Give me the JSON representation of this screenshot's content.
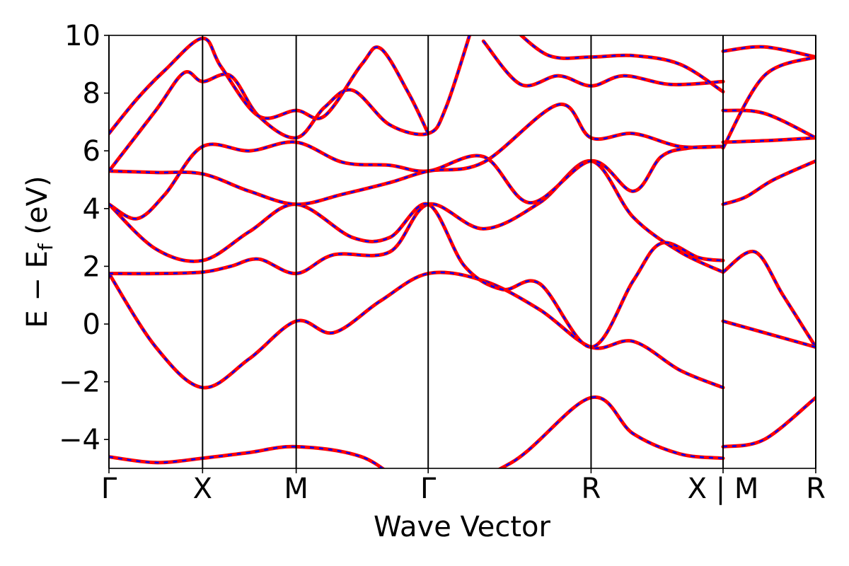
{
  "chart_data": {
    "type": "line",
    "title": "",
    "xlabel": "Wave Vector",
    "ylabel_main": "E − E",
    "ylabel_sub": "f",
    "ylabel_unit": "(eV)",
    "ylim": [
      -5,
      10
    ],
    "yticks": [
      -4,
      -2,
      0,
      2,
      4,
      6,
      8,
      10
    ],
    "ytick_labels": [
      "−4",
      "−2",
      "0",
      "2",
      "4",
      "6",
      "8",
      "10"
    ],
    "grid": false,
    "xlim": [
      0,
      7.55
    ],
    "kpoints": [
      {
        "x": 0.0,
        "label": "Γ"
      },
      {
        "x": 1.0,
        "label": "X"
      },
      {
        "x": 2.0,
        "label": "M"
      },
      {
        "x": 3.41,
        "label": "Γ"
      },
      {
        "x": 5.15,
        "label": "R"
      },
      {
        "x": 6.56,
        "label": "X | M"
      },
      {
        "x": 7.55,
        "label": "R"
      }
    ],
    "series": [
      {
        "color": "#ff0000",
        "style": "solid",
        "bands": [
          [
            [
              0,
              -4.6
            ],
            [
              0.5,
              -4.8
            ],
            [
              1.0,
              -4.65
            ],
            [
              1.5,
              -4.45
            ],
            [
              2.0,
              -4.25
            ],
            [
              2.7,
              -4.6
            ],
            [
              3.41,
              -5.8
            ],
            [
              4.3,
              -4.8
            ],
            [
              5.15,
              -2.55
            ],
            [
              5.6,
              -3.8
            ],
            [
              6.1,
              -4.5
            ],
            [
              6.56,
              -4.65
            ]
          ],
          [
            [
              0,
              1.75
            ],
            [
              0.5,
              -0.8
            ],
            [
              1.0,
              -2.2
            ],
            [
              1.5,
              -1.2
            ],
            [
              2.0,
              0.1
            ],
            [
              2.4,
              -0.3
            ],
            [
              2.9,
              0.8
            ],
            [
              3.41,
              1.75
            ],
            [
              4.0,
              1.5
            ],
            [
              4.6,
              0.5
            ],
            [
              5.15,
              -0.8
            ],
            [
              5.6,
              -0.6
            ],
            [
              6.1,
              -1.6
            ],
            [
              6.56,
              -2.2
            ]
          ],
          [
            [
              0,
              1.75
            ],
            [
              0.5,
              1.75
            ],
            [
              1.0,
              1.8
            ],
            [
              1.3,
              2.0
            ],
            [
              1.6,
              2.25
            ],
            [
              2.0,
              1.75
            ],
            [
              2.4,
              2.4
            ],
            [
              3.0,
              2.5
            ],
            [
              3.41,
              4.15
            ],
            [
              4.0,
              3.3
            ],
            [
              4.6,
              4.2
            ],
            [
              5.15,
              5.65
            ],
            [
              5.6,
              3.7
            ],
            [
              6.1,
              2.5
            ],
            [
              6.56,
              1.8
            ]
          ],
          [
            [
              0,
              4.15
            ],
            [
              0.5,
              2.6
            ],
            [
              1.0,
              2.2
            ],
            [
              1.5,
              3.2
            ],
            [
              2.0,
              4.15
            ],
            [
              2.6,
              3.0
            ],
            [
              3.0,
              3.0
            ],
            [
              3.41,
              4.15
            ],
            [
              3.8,
              2.0
            ],
            [
              4.2,
              1.2
            ],
            [
              4.6,
              1.4
            ],
            [
              5.15,
              -0.8
            ],
            [
              5.6,
              1.5
            ],
            [
              5.9,
              2.8
            ],
            [
              6.3,
              2.3
            ],
            [
              6.56,
              2.2
            ]
          ],
          [
            [
              0,
              4.15
            ],
            [
              0.3,
              3.65
            ],
            [
              0.6,
              4.5
            ],
            [
              1.0,
              6.15
            ],
            [
              1.5,
              6.0
            ],
            [
              2.0,
              6.3
            ],
            [
              2.5,
              5.6
            ],
            [
              3.0,
              5.5
            ],
            [
              3.41,
              5.3
            ],
            [
              4.0,
              5.8
            ],
            [
              4.5,
              4.2
            ],
            [
              5.15,
              5.65
            ],
            [
              5.6,
              4.6
            ],
            [
              5.9,
              5.8
            ],
            [
              6.2,
              6.1
            ],
            [
              6.56,
              6.15
            ]
          ],
          [
            [
              0,
              5.3
            ],
            [
              0.5,
              5.25
            ],
            [
              1.0,
              5.2
            ],
            [
              1.5,
              4.6
            ],
            [
              2.0,
              4.15
            ],
            [
              2.5,
              4.5
            ],
            [
              3.0,
              4.9
            ],
            [
              3.41,
              5.3
            ],
            [
              4.0,
              5.6
            ],
            [
              4.8,
              7.6
            ],
            [
              5.15,
              6.45
            ],
            [
              5.6,
              6.6
            ],
            [
              6.1,
              6.15
            ],
            [
              6.56,
              6.15
            ]
          ],
          [
            [
              0,
              5.3
            ],
            [
              0.5,
              7.4
            ],
            [
              0.8,
              8.7
            ],
            [
              1.0,
              8.4
            ],
            [
              1.3,
              8.6
            ],
            [
              1.6,
              7.2
            ],
            [
              2.0,
              6.45
            ],
            [
              2.3,
              7.5
            ],
            [
              2.6,
              8.1
            ],
            [
              3.0,
              6.9
            ],
            [
              3.41,
              6.6
            ],
            [
              3.6,
              7.5
            ],
            [
              3.9,
              10.5
            ]
          ],
          [
            [
              0,
              6.6
            ],
            [
              0.3,
              7.8
            ],
            [
              0.6,
              8.8
            ],
            [
              1.0,
              9.9
            ],
            [
              1.2,
              8.9
            ],
            [
              1.6,
              7.2
            ],
            [
              2.0,
              7.4
            ],
            [
              2.3,
              7.2
            ],
            [
              2.7,
              9.0
            ],
            [
              2.9,
              9.55
            ],
            [
              3.2,
              8.0
            ],
            [
              3.41,
              6.6
            ]
          ],
          [
            [
              4.0,
              9.8
            ],
            [
              4.4,
              8.3
            ],
            [
              4.8,
              8.6
            ],
            [
              5.15,
              8.25
            ],
            [
              5.5,
              8.6
            ],
            [
              6.0,
              8.3
            ],
            [
              6.56,
              8.4
            ]
          ],
          [
            [
              4.3,
              10.3
            ],
            [
              4.7,
              9.3
            ],
            [
              5.15,
              9.25
            ],
            [
              5.6,
              9.3
            ],
            [
              6.1,
              9.0
            ],
            [
              6.56,
              8.05
            ]
          ],
          [
            [
              6.56,
              6.3
            ],
            [
              7.0,
              6.35
            ],
            [
              7.55,
              6.45
            ]
          ],
          [
            [
              6.56,
              7.4
            ],
            [
              7.0,
              7.3
            ],
            [
              7.55,
              6.45
            ]
          ],
          [
            [
              6.56,
              1.8
            ],
            [
              6.9,
              2.5
            ],
            [
              7.2,
              1.0
            ],
            [
              7.55,
              -0.8
            ]
          ],
          [
            [
              6.56,
              4.15
            ],
            [
              6.8,
              4.4
            ],
            [
              7.1,
              5.0
            ],
            [
              7.55,
              5.65
            ]
          ],
          [
            [
              6.56,
              0.1
            ],
            [
              7.0,
              -0.3
            ],
            [
              7.55,
              -0.8
            ]
          ],
          [
            [
              6.56,
              -4.25
            ],
            [
              7.0,
              -4.0
            ],
            [
              7.55,
              -2.55
            ]
          ],
          [
            [
              6.56,
              9.45
            ],
            [
              7.0,
              9.6
            ],
            [
              7.55,
              9.25
            ]
          ],
          [
            [
              6.56,
              6.1
            ],
            [
              7.0,
              8.6
            ],
            [
              7.55,
              9.25
            ]
          ]
        ]
      }
    ]
  }
}
